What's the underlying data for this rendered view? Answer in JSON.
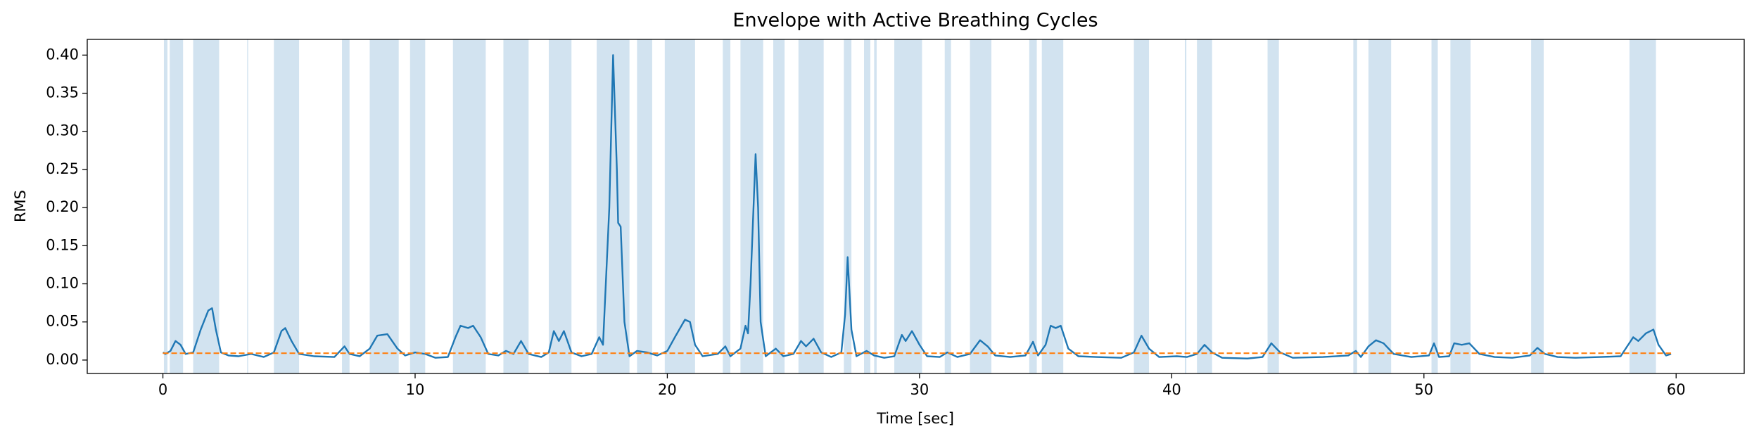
{
  "chart_data": {
    "type": "line",
    "title": "Envelope with Active Breathing Cycles",
    "xlabel": "Time [sec]",
    "ylabel": "RMS",
    "xlim": [
      -3.0,
      62.7
    ],
    "ylim": [
      -0.0176,
      0.4206
    ],
    "xticks": [
      0,
      10,
      20,
      30,
      40,
      50,
      60
    ],
    "yticks": [
      {
        "value": 0,
        "label": "0.00"
      },
      {
        "value": 0.05,
        "label": "0.05"
      },
      {
        "value": 0.1,
        "label": "0.10"
      },
      {
        "value": 0.15,
        "label": "0.15"
      },
      {
        "value": 0.2,
        "label": "0.20"
      },
      {
        "value": 0.25,
        "label": "0.25"
      },
      {
        "value": 0.3,
        "label": "0.30"
      },
      {
        "value": 0.35,
        "label": "0.35"
      },
      {
        "value": 0.4,
        "label": "0.40"
      }
    ],
    "shaded_color": "#d2e3f0",
    "shaded_spans": [
      [
        0.04,
        0.18
      ],
      [
        0.27,
        0.8
      ],
      [
        1.2,
        2.23
      ],
      [
        3.34,
        3.38
      ],
      [
        4.4,
        5.4
      ],
      [
        7.1,
        7.4
      ],
      [
        8.2,
        9.35
      ],
      [
        9.8,
        10.4
      ],
      [
        11.5,
        12.8
      ],
      [
        13.5,
        14.5
      ],
      [
        15.3,
        16.2
      ],
      [
        17.2,
        18.5
      ],
      [
        18.8,
        19.4
      ],
      [
        19.9,
        21.1
      ],
      [
        22.2,
        22.5
      ],
      [
        22.9,
        23.8
      ],
      [
        24.2,
        24.65
      ],
      [
        25.2,
        26.2
      ],
      [
        27.0,
        27.3
      ],
      [
        27.8,
        28.05
      ],
      [
        28.2,
        28.3
      ],
      [
        29.0,
        30.1
      ],
      [
        31.0,
        31.25
      ],
      [
        32.0,
        32.85
      ],
      [
        34.35,
        34.65
      ],
      [
        34.85,
        35.7
      ],
      [
        38.5,
        39.1
      ],
      [
        40.52,
        40.58
      ],
      [
        41.0,
        41.6
      ],
      [
        43.8,
        44.25
      ],
      [
        47.2,
        47.35
      ],
      [
        47.8,
        48.7
      ],
      [
        50.3,
        50.55
      ],
      [
        51.05,
        51.85
      ],
      [
        54.25,
        54.75
      ],
      [
        58.15,
        59.2
      ]
    ],
    "series": [
      {
        "color": "#1f77b4",
        "x": [
          0,
          0.1,
          0.3,
          0.5,
          0.7,
          0.9,
          1.2,
          1.5,
          1.8,
          1.95,
          2.1,
          2.3,
          2.6,
          3.0,
          3.5,
          4.0,
          4.4,
          4.7,
          4.85,
          5.1,
          5.4,
          6.0,
          6.8,
          7.2,
          7.4,
          7.8,
          8.2,
          8.5,
          8.9,
          9.3,
          9.6,
          10.0,
          10.4,
          10.8,
          11.3,
          11.6,
          11.8,
          12.1,
          12.3,
          12.6,
          12.9,
          13.3,
          13.6,
          13.9,
          14.2,
          14.5,
          15.0,
          15.3,
          15.5,
          15.7,
          15.9,
          16.2,
          16.6,
          17.0,
          17.3,
          17.45,
          17.7,
          17.85,
          18.0,
          18.05,
          18.15,
          18.3,
          18.5,
          18.8,
          19.2,
          19.6,
          20.0,
          20.3,
          20.7,
          20.9,
          21.1,
          21.4,
          22.0,
          22.3,
          22.5,
          22.9,
          23.1,
          23.2,
          23.3,
          23.5,
          23.6,
          23.7,
          23.9,
          24.3,
          24.6,
          25.0,
          25.3,
          25.5,
          25.8,
          26.1,
          26.5,
          26.9,
          27.05,
          27.15,
          27.3,
          27.5,
          27.9,
          28.2,
          28.6,
          29.0,
          29.3,
          29.45,
          29.7,
          30.0,
          30.3,
          30.8,
          31.1,
          31.5,
          32.0,
          32.4,
          32.7,
          33.0,
          33.6,
          34.2,
          34.5,
          34.7,
          35.0,
          35.2,
          35.4,
          35.6,
          35.9,
          36.3,
          37.0,
          38.0,
          38.5,
          38.8,
          39.1,
          39.5,
          40.2,
          40.6,
          41.0,
          41.3,
          41.6,
          42.0,
          43.0,
          43.6,
          43.95,
          44.3,
          44.8,
          46.0,
          47.0,
          47.3,
          47.5,
          47.8,
          48.1,
          48.4,
          48.8,
          49.5,
          50.2,
          50.4,
          50.6,
          51.0,
          51.2,
          51.5,
          51.8,
          52.2,
          52.8,
          53.5,
          54.2,
          54.5,
          54.8,
          55.3,
          56.0,
          57.0,
          57.8,
          58.3,
          58.5,
          58.8,
          59.1,
          59.3,
          59.6,
          59.8
        ],
        "values": [
          0.01,
          0.008,
          0.012,
          0.025,
          0.02,
          0.008,
          0.01,
          0.04,
          0.065,
          0.068,
          0.04,
          0.01,
          0.006,
          0.005,
          0.008,
          0.004,
          0.01,
          0.038,
          0.042,
          0.025,
          0.008,
          0.005,
          0.004,
          0.018,
          0.008,
          0.005,
          0.015,
          0.032,
          0.034,
          0.015,
          0.006,
          0.01,
          0.008,
          0.003,
          0.004,
          0.03,
          0.045,
          0.042,
          0.045,
          0.03,
          0.008,
          0.006,
          0.012,
          0.008,
          0.025,
          0.008,
          0.004,
          0.01,
          0.038,
          0.025,
          0.038,
          0.01,
          0.005,
          0.008,
          0.03,
          0.02,
          0.2,
          0.4,
          0.25,
          0.18,
          0.175,
          0.05,
          0.005,
          0.012,
          0.01,
          0.006,
          0.012,
          0.03,
          0.053,
          0.05,
          0.02,
          0.005,
          0.008,
          0.018,
          0.005,
          0.015,
          0.045,
          0.035,
          0.1,
          0.27,
          0.2,
          0.05,
          0.005,
          0.015,
          0.005,
          0.008,
          0.025,
          0.018,
          0.028,
          0.01,
          0.004,
          0.01,
          0.06,
          0.135,
          0.04,
          0.005,
          0.012,
          0.006,
          0.003,
          0.005,
          0.033,
          0.025,
          0.038,
          0.02,
          0.005,
          0.004,
          0.01,
          0.004,
          0.008,
          0.026,
          0.018,
          0.006,
          0.004,
          0.006,
          0.024,
          0.006,
          0.02,
          0.045,
          0.042,
          0.045,
          0.015,
          0.005,
          0.004,
          0.003,
          0.01,
          0.032,
          0.015,
          0.004,
          0.005,
          0.004,
          0.008,
          0.02,
          0.01,
          0.003,
          0.002,
          0.004,
          0.022,
          0.01,
          0.003,
          0.004,
          0.006,
          0.012,
          0.004,
          0.018,
          0.026,
          0.022,
          0.008,
          0.004,
          0.006,
          0.022,
          0.004,
          0.005,
          0.022,
          0.02,
          0.022,
          0.008,
          0.004,
          0.003,
          0.006,
          0.016,
          0.008,
          0.004,
          0.003,
          0.004,
          0.005,
          0.03,
          0.025,
          0.035,
          0.04,
          0.02,
          0.006,
          0.008
        ]
      },
      {
        "color": "#ff7f0e",
        "dashed": true,
        "x": [
          0,
          59.8
        ],
        "values": [
          0.009,
          0.009
        ]
      }
    ]
  }
}
